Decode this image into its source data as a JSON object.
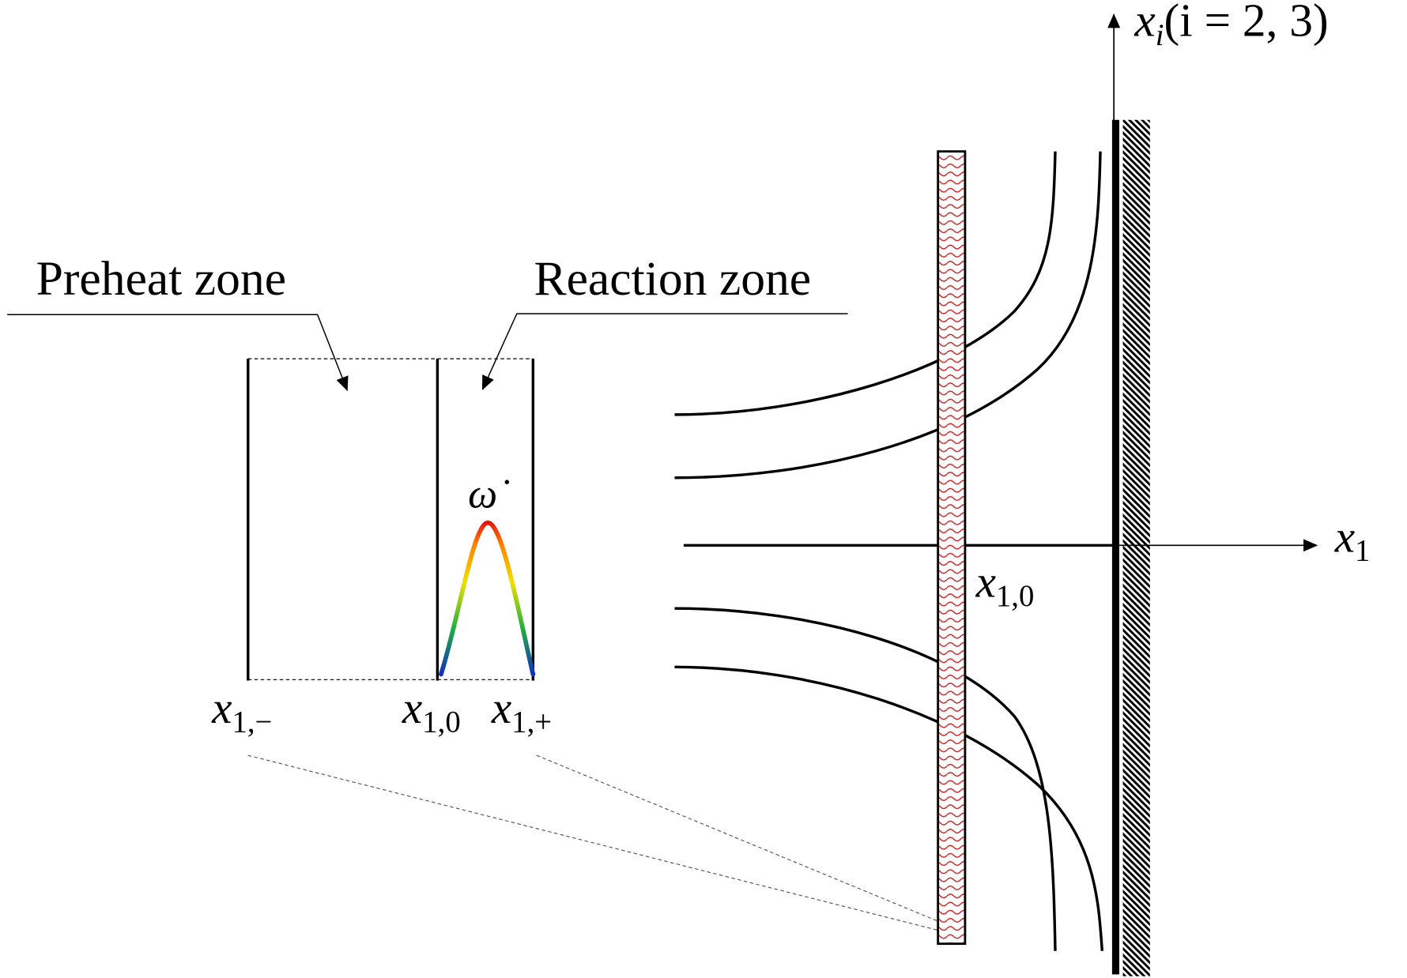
{
  "labels": {
    "preheat_zone": "Preheat zone",
    "reaction_zone": "Reaction zone",
    "reaction_rate": "ω̇",
    "x1_minus": {
      "base": "x",
      "sub": "1,−"
    },
    "x1_zero": {
      "base": "x",
      "sub": "1,0"
    },
    "x1_plus": {
      "base": "x",
      "sub": "1,+"
    },
    "flame_position": {
      "base": "x",
      "sub": "1,0"
    },
    "axis_x1": {
      "base": "x",
      "sub": "1"
    },
    "axis_xi": {
      "base": "x",
      "sub": "i",
      "rest": "(i = 2, 3)"
    }
  },
  "colors": {
    "flame_sheet": "#cc2222",
    "rate_profile_gradient": [
      "#1030c0",
      "#20b040",
      "#f0e000",
      "#ff8000",
      "#e01010"
    ],
    "line": "#000000"
  }
}
